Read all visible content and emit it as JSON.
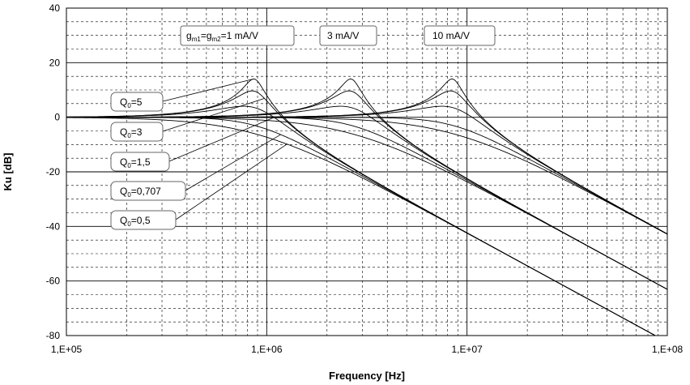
{
  "chart_data": {
    "type": "line",
    "xscale": "log",
    "xlabel": "Frequency [Hz]",
    "ylabel": "Ku [dB]",
    "xlim": [
      100000,
      100000000
    ],
    "ylim": [
      -80,
      40
    ],
    "x_ticks": [
      {
        "value": 100000,
        "label": "1,E+05"
      },
      {
        "value": 1000000,
        "label": "1,E+06"
      },
      {
        "value": 10000000,
        "label": "1,E+07"
      },
      {
        "value": 100000000,
        "label": "1,E+08"
      }
    ],
    "y_ticks": [
      40,
      20,
      0,
      -20,
      -40,
      -60,
      -80
    ],
    "grid": true,
    "families": [
      {
        "gm_label": "1 mA/V",
        "f0": 870000
      },
      {
        "gm_label": "3 mA/V",
        "f0": 2650000
      },
      {
        "gm_label": "10 mA/V",
        "f0": 8500000
      }
    ],
    "q_values": [
      5,
      3,
      1.5,
      0.707,
      0.5
    ],
    "series": [
      {
        "f0": 870000,
        "q": 5
      },
      {
        "f0": 870000,
        "q": 3
      },
      {
        "f0": 870000,
        "q": 1.5
      },
      {
        "f0": 870000,
        "q": 0.707
      },
      {
        "f0": 870000,
        "q": 0.5
      },
      {
        "f0": 2650000,
        "q": 5
      },
      {
        "f0": 2650000,
        "q": 3
      },
      {
        "f0": 2650000,
        "q": 1.5
      },
      {
        "f0": 2650000,
        "q": 0.707
      },
      {
        "f0": 2650000,
        "q": 0.5
      },
      {
        "f0": 8500000,
        "q": 5
      },
      {
        "f0": 8500000,
        "q": 3
      },
      {
        "f0": 8500000,
        "q": 1.5
      },
      {
        "f0": 8500000,
        "q": 0.707
      },
      {
        "f0": 8500000,
        "q": 0.5
      }
    ],
    "annotations": {
      "gm_first_prefix": "g",
      "gm_first_sub1": "m1",
      "gm_first_mid": "=g",
      "gm_first_sub2": "m2",
      "gm_first_suffix": "=1 mA/V",
      "gm_second": "3 mA/V",
      "gm_third": "10 mA/V",
      "q_prefix": "Q",
      "q_sub": "0",
      "q_labels": [
        "=5",
        "=3",
        "=1,5",
        "=0,707",
        "=0,5"
      ]
    }
  }
}
